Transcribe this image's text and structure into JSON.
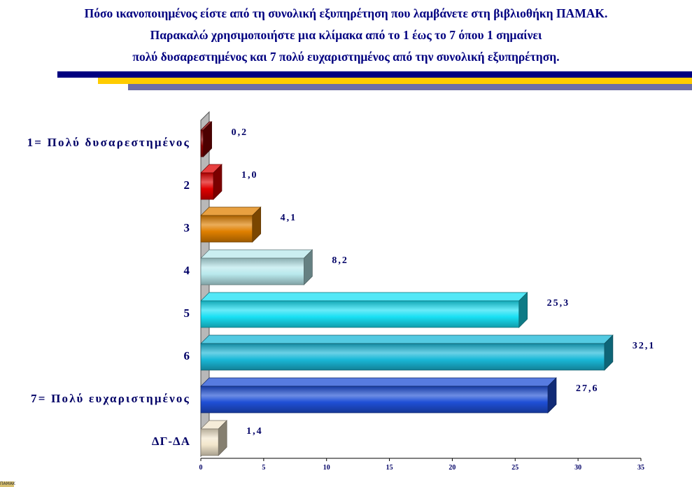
{
  "title_lines": [
    "Πόσο ικανοποιημένος είστε από τη συνολική εξυπηρέτηση που λαμβάνετε στη βιβλιοθήκη ΠΑΜΑΚ.",
    "Παρακαλώ χρησιμοποιήστε μια κλίμακα από το 1 έως το 7 όπου 1 σημαίνει",
    "πολύ δυσαρεστημένος και 7 πολύ ευχαριστημένος από την συνολική εξυπηρέτηση."
  ],
  "colors": {
    "title": "#000080",
    "line_navy": "#000080",
    "line_yellow": "#FFCC00",
    "line_grey": "#6E6EA6",
    "label": "#000066"
  },
  "chart_data": {
    "type": "bar",
    "orientation": "horizontal",
    "three_d": true,
    "categories": [
      "1= Πολύ δυσαρεστημένος",
      "2",
      "3",
      "4",
      "5",
      "6",
      "7= Πολύ ευχαριστημένος",
      "ΔΓ-ΔΑ"
    ],
    "values": [
      0.2,
      1.0,
      4.1,
      8.2,
      25.3,
      32.1,
      27.6,
      1.4
    ],
    "value_labels": [
      "0,2",
      "1,0",
      "4,1",
      "8,2",
      "25,3",
      "32,1",
      "27,6",
      "1,4"
    ],
    "bar_colors": [
      "#8B0000",
      "#E00000",
      "#E08000",
      "#B8E8EC",
      "#19E0F4",
      "#1AB8D8",
      "#1F4FD6",
      "#F2E6CC"
    ],
    "xlim": [
      0,
      35
    ],
    "xticks": [
      "0",
      "5",
      "10",
      "15",
      "20",
      "25",
      "30",
      "35"
    ],
    "grid": false,
    "legend": "none"
  }
}
